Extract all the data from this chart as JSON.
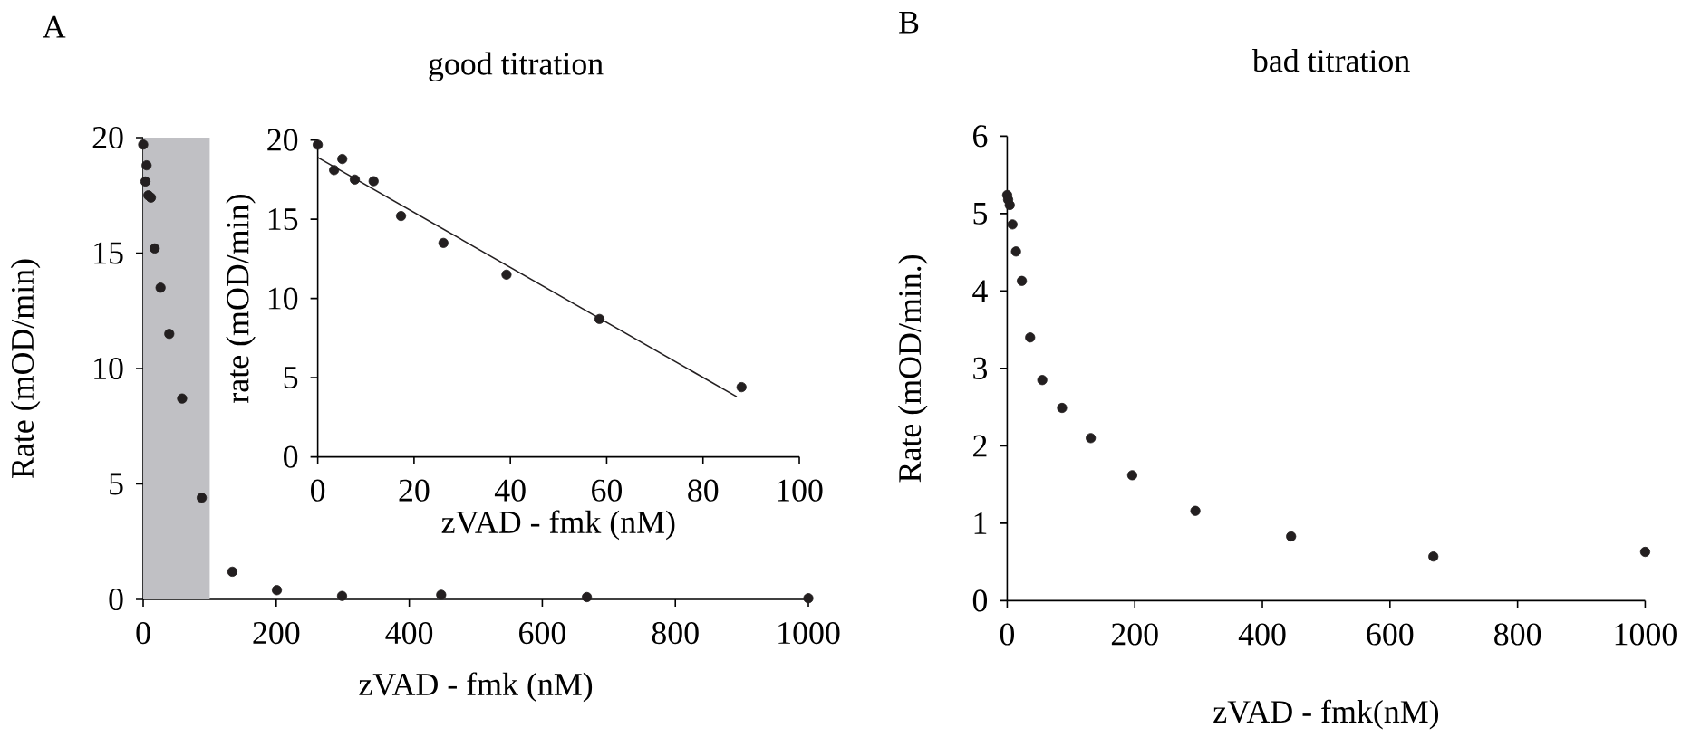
{
  "chart_data": [
    {
      "type": "scatter",
      "title": "good titration",
      "xlabel": "zVAD - fmk (nM)",
      "ylabel": "Rate (mOD/min)",
      "annotations": [
        "A"
      ],
      "marker": "circle",
      "x": [
        0,
        3.4,
        5.1,
        7.7,
        11.6,
        17.3,
        26.1,
        39.2,
        58.5,
        88,
        134,
        201,
        299,
        448,
        667,
        1000
      ],
      "series": [
        {
          "color": "#231f20",
          "values": [
            19.7,
            18.1,
            18.8,
            17.5,
            17.4,
            15.2,
            13.5,
            11.5,
            8.7,
            4.4,
            1.2,
            0.4,
            0.15,
            0.2,
            0.1,
            0.05
          ]
        }
      ],
      "bands": [
        {
          "axis": "x",
          "from": 0,
          "to": 100,
          "color": "#c0c0c4"
        }
      ],
      "xlim": [
        0,
        1000
      ],
      "ylim": [
        0,
        20
      ],
      "xticks": [
        0,
        200,
        400,
        600,
        800,
        1000
      ],
      "yticks": [
        0,
        5,
        10,
        15,
        20
      ]
    },
    {
      "type": "scatter",
      "xlabel": "zVAD - fmk (nM)",
      "ylabel": "rate (mOD/min)",
      "marker": "circle",
      "x": [
        0,
        3.4,
        5.1,
        7.7,
        11.6,
        17.3,
        26.1,
        39.2,
        58.5,
        88
      ],
      "series": [
        {
          "color": "#231f20",
          "values": [
            19.7,
            18.1,
            18.8,
            17.5,
            17.4,
            15.2,
            13.5,
            11.5,
            8.7,
            4.4
          ]
        },
        {
          "type": "line",
          "marker": "none",
          "color": "#231f20",
          "x": [
            0,
            87
          ],
          "values": [
            18.9,
            3.8
          ]
        }
      ],
      "xlim": [
        0,
        100
      ],
      "ylim": [
        0,
        20
      ],
      "xticks": [
        0,
        20,
        40,
        60,
        80,
        100
      ],
      "yticks": [
        0,
        5,
        10,
        15,
        20
      ]
    },
    {
      "type": "scatter",
      "title": "bad titration",
      "xlabel": "zVAD - fmk(nM)",
      "ylabel": "Rate (mOD/min.)",
      "annotations": [
        "B"
      ],
      "marker": "circle",
      "x": [
        0,
        1.5,
        4,
        8.3,
        13.8,
        23,
        36,
        55,
        86,
        131,
        196,
        295,
        445,
        668,
        1000
      ],
      "series": [
        {
          "color": "#231f20",
          "values": [
            5.24,
            5.18,
            5.11,
            4.86,
            4.51,
            4.13,
            3.4,
            2.85,
            2.49,
            2.1,
            1.62,
            1.16,
            0.83,
            0.57,
            0.63
          ]
        }
      ],
      "xlim": [
        0,
        1000
      ],
      "ylim": [
        0,
        6
      ],
      "xticks": [
        0,
        200,
        400,
        600,
        800,
        1000
      ],
      "yticks": [
        0,
        1,
        2,
        3,
        4,
        5,
        6
      ]
    }
  ]
}
